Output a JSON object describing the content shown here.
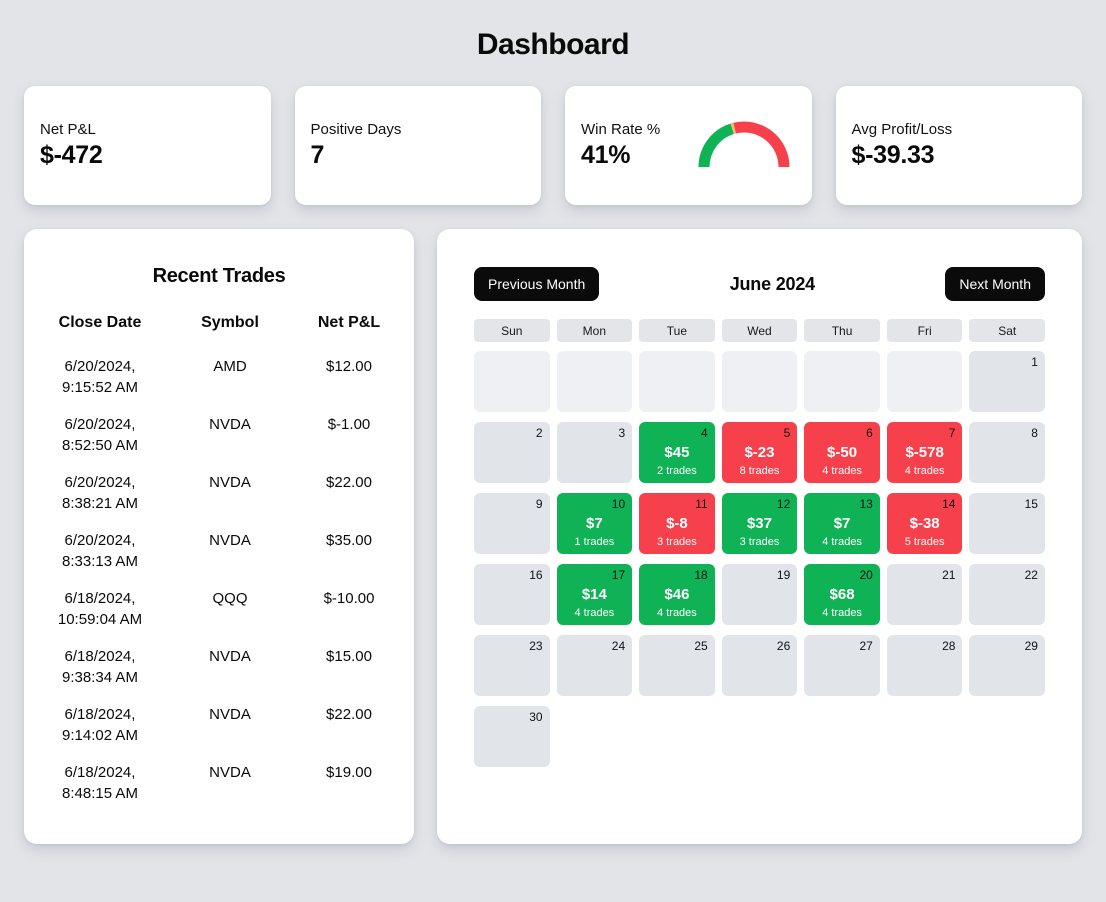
{
  "page": {
    "title": "Dashboard"
  },
  "colors": {
    "green": "#10b256",
    "red": "#f6414d",
    "amber": "#f8bd59",
    "button_bg": "#0b0b0b"
  },
  "stats": [
    {
      "label": "Net P&L",
      "value": "$-472"
    },
    {
      "label": "Positive Days",
      "value": "7"
    },
    {
      "label": "Win Rate %",
      "value": "41%",
      "gauge": {
        "percent": 41
      }
    },
    {
      "label": "Avg Profit/Loss",
      "value": "$-39.33"
    }
  ],
  "recent_trades": {
    "title": "Recent Trades",
    "columns": [
      "Close Date",
      "Symbol",
      "Net P&L"
    ],
    "rows": [
      {
        "date": "6/20/2024,",
        "time": "9:15:52 AM",
        "symbol": "AMD",
        "pnl": "$12.00"
      },
      {
        "date": "6/20/2024,",
        "time": "8:52:50 AM",
        "symbol": "NVDA",
        "pnl": "$-1.00"
      },
      {
        "date": "6/20/2024,",
        "time": "8:38:21 AM",
        "symbol": "NVDA",
        "pnl": "$22.00"
      },
      {
        "date": "6/20/2024,",
        "time": "8:33:13 AM",
        "symbol": "NVDA",
        "pnl": "$35.00"
      },
      {
        "date": "6/18/2024,",
        "time": "10:59:04 AM",
        "symbol": "QQQ",
        "pnl": "$-10.00"
      },
      {
        "date": "6/18/2024,",
        "time": "9:38:34 AM",
        "symbol": "NVDA",
        "pnl": "$15.00"
      },
      {
        "date": "6/18/2024,",
        "time": "9:14:02 AM",
        "symbol": "NVDA",
        "pnl": "$22.00"
      },
      {
        "date": "6/18/2024,",
        "time": "8:48:15 AM",
        "symbol": "NVDA",
        "pnl": "$19.00"
      }
    ]
  },
  "calendar": {
    "prev_label": "Previous Month",
    "title": "June 2024",
    "next_label": "Next Month",
    "weekdays": [
      "Sun",
      "Mon",
      "Tue",
      "Wed",
      "Thu",
      "Fri",
      "Sat"
    ],
    "weeks": [
      [
        {
          "type": "lead"
        },
        {
          "type": "lead"
        },
        {
          "type": "lead"
        },
        {
          "type": "lead"
        },
        {
          "type": "lead"
        },
        {
          "type": "lead"
        },
        {
          "type": "plain",
          "day": 1
        }
      ],
      [
        {
          "type": "plain",
          "day": 2
        },
        {
          "type": "plain",
          "day": 3
        },
        {
          "type": "win",
          "day": 4,
          "pnl": "$45",
          "trades": "2 trades"
        },
        {
          "type": "loss",
          "day": 5,
          "pnl": "$-23",
          "trades": "8 trades"
        },
        {
          "type": "loss",
          "day": 6,
          "pnl": "$-50",
          "trades": "4 trades"
        },
        {
          "type": "loss",
          "day": 7,
          "pnl": "$-578",
          "trades": "4 trades"
        },
        {
          "type": "plain",
          "day": 8
        }
      ],
      [
        {
          "type": "plain",
          "day": 9
        },
        {
          "type": "win",
          "day": 10,
          "pnl": "$7",
          "trades": "1 trades"
        },
        {
          "type": "loss",
          "day": 11,
          "pnl": "$-8",
          "trades": "3 trades"
        },
        {
          "type": "win",
          "day": 12,
          "pnl": "$37",
          "trades": "3 trades"
        },
        {
          "type": "win",
          "day": 13,
          "pnl": "$7",
          "trades": "4 trades"
        },
        {
          "type": "loss",
          "day": 14,
          "pnl": "$-38",
          "trades": "5 trades"
        },
        {
          "type": "plain",
          "day": 15
        }
      ],
      [
        {
          "type": "plain",
          "day": 16
        },
        {
          "type": "win",
          "day": 17,
          "pnl": "$14",
          "trades": "4 trades"
        },
        {
          "type": "win",
          "day": 18,
          "pnl": "$46",
          "trades": "4 trades"
        },
        {
          "type": "plain",
          "day": 19
        },
        {
          "type": "win",
          "day": 20,
          "pnl": "$68",
          "trades": "4 trades"
        },
        {
          "type": "plain",
          "day": 21
        },
        {
          "type": "plain",
          "day": 22
        }
      ],
      [
        {
          "type": "plain",
          "day": 23
        },
        {
          "type": "plain",
          "day": 24
        },
        {
          "type": "plain",
          "day": 25
        },
        {
          "type": "plain",
          "day": 26
        },
        {
          "type": "plain",
          "day": 27
        },
        {
          "type": "plain",
          "day": 28
        },
        {
          "type": "plain",
          "day": 29
        }
      ],
      [
        {
          "type": "plain",
          "day": 30
        },
        {
          "type": "blank"
        },
        {
          "type": "blank"
        },
        {
          "type": "blank"
        },
        {
          "type": "blank"
        },
        {
          "type": "blank"
        },
        {
          "type": "blank"
        }
      ]
    ]
  }
}
